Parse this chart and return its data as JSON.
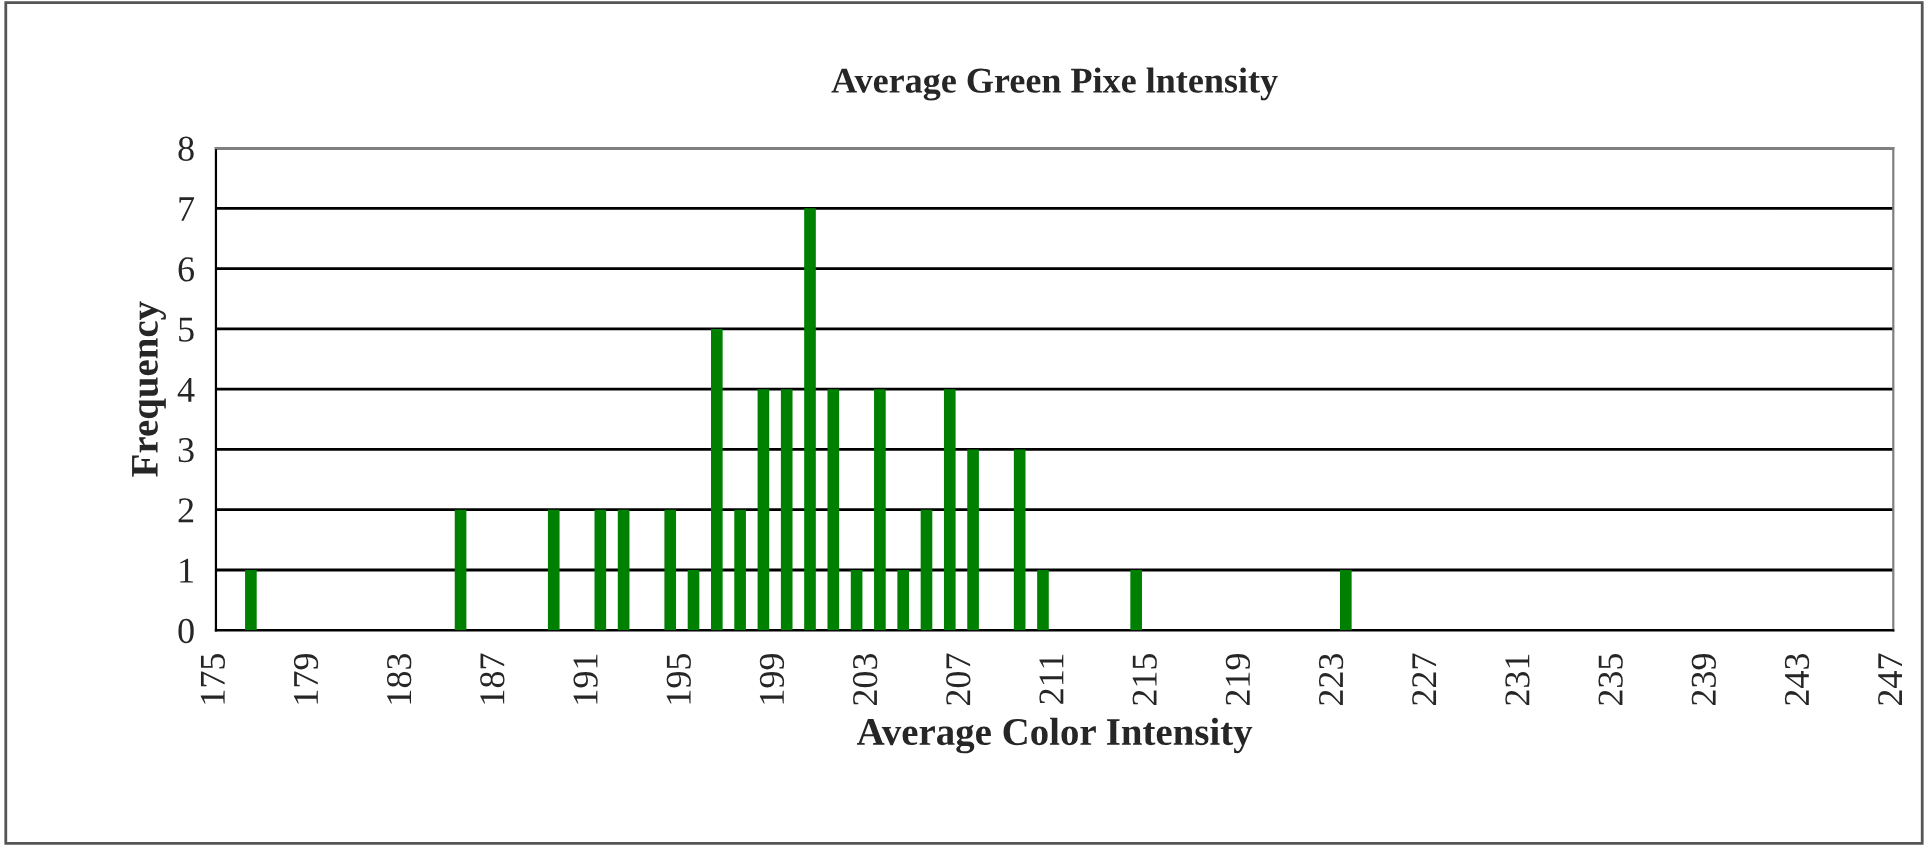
{
  "chart_data": {
    "type": "bar",
    "title": "Average Green Pixe lntensity",
    "xlabel": "Average Color Intensity",
    "ylabel": "Frequency",
    "x": [
      176.5,
      185.5,
      189.5,
      191.5,
      192.5,
      194.5,
      195.5,
      196.5,
      197.5,
      198.5,
      199.5,
      200.5,
      201.5,
      202.5,
      203.5,
      204.5,
      205.5,
      206.5,
      207.5,
      209.5,
      210.5,
      214.5,
      223.5
    ],
    "values": [
      1,
      2,
      2,
      2,
      2,
      2,
      1,
      5,
      2,
      4,
      4,
      7,
      4,
      1,
      4,
      1,
      2,
      4,
      3,
      3,
      1,
      1,
      1
    ],
    "color": "#008000",
    "xlim": [
      175,
      247
    ],
    "xticks": [
      175,
      179,
      183,
      187,
      191,
      195,
      199,
      203,
      207,
      211,
      215,
      219,
      223,
      227,
      231,
      235,
      239,
      243,
      247
    ],
    "ylim": [
      0,
      8
    ],
    "yticks": [
      0,
      1,
      2,
      3,
      4,
      5,
      6,
      7,
      8
    ],
    "grid": "y"
  }
}
